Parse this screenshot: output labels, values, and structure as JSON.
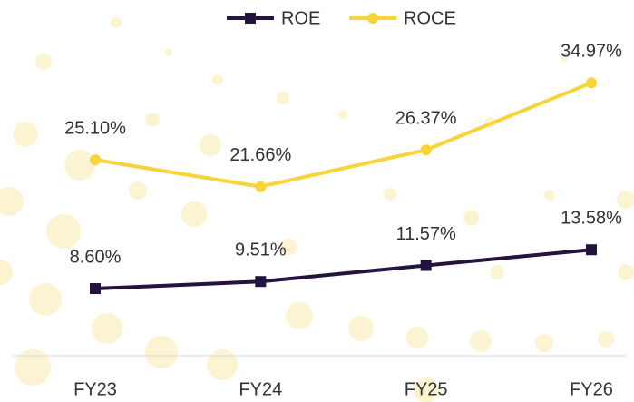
{
  "chart_data": {
    "type": "line",
    "categories": [
      "FY23",
      "FY24",
      "FY25",
      "FY26"
    ],
    "series": [
      {
        "name": "ROE",
        "color": "#24123f",
        "values": [
          8.6,
          9.51,
          11.57,
          13.58
        ],
        "value_labels": [
          "8.60%",
          "9.51%",
          "11.57%",
          "13.58%"
        ]
      },
      {
        "name": "ROCE",
        "color": "#f9d33a",
        "values": [
          25.1,
          21.66,
          26.37,
          34.97
        ],
        "value_labels": [
          "25.10%",
          "21.66%",
          "26.37%",
          "34.97%"
        ]
      }
    ],
    "ylim": [
      0,
      45
    ],
    "legend": "top"
  }
}
